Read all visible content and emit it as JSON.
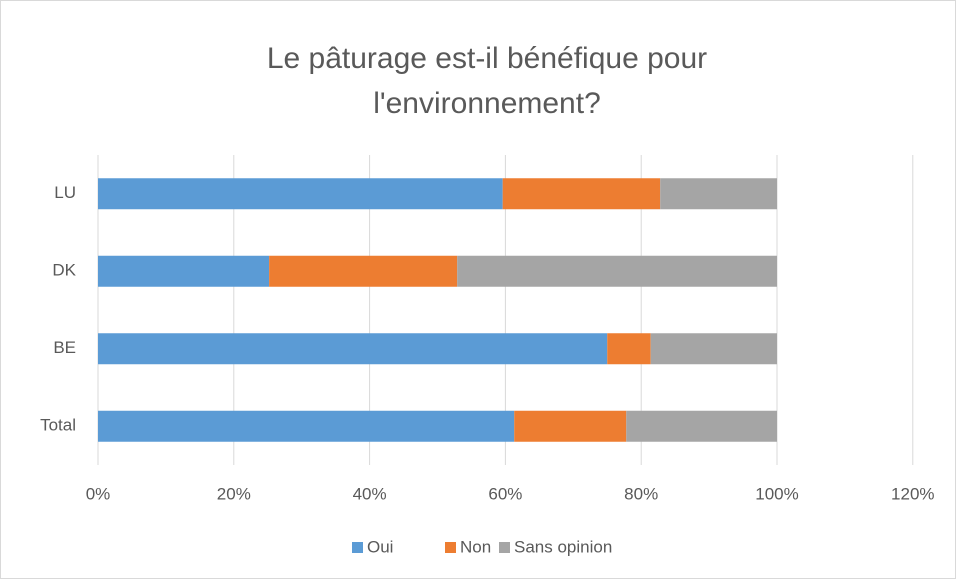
{
  "chart_data": {
    "type": "stacked-barh",
    "title": [
      "Le pâturage est-il bénéfique pour",
      "l'environnement?"
    ],
    "categories": [
      "LU",
      "DK",
      "BE",
      "Total"
    ],
    "series": [
      {
        "name": "Oui",
        "color": "#5b9bd5",
        "values": [
          59.6,
          25.2,
          75.0,
          61.3
        ]
      },
      {
        "name": "Non",
        "color": "#ed7d31",
        "values": [
          23.2,
          27.7,
          6.4,
          16.5
        ]
      },
      {
        "name": "Sans opinion",
        "color": "#a5a5a5",
        "values": [
          17.2,
          47.1,
          18.6,
          22.2
        ]
      }
    ],
    "xlim": [
      0,
      120
    ],
    "xticks": [
      {
        "value": 0,
        "label": "0%"
      },
      {
        "value": 20,
        "label": "20%"
      },
      {
        "value": 40,
        "label": "40%"
      },
      {
        "value": 60,
        "label": "60%"
      },
      {
        "value": 80,
        "label": "80%"
      },
      {
        "value": 100,
        "label": "100%"
      },
      {
        "value": 120,
        "label": "120%"
      }
    ],
    "grid": true,
    "legend": "bottom"
  }
}
